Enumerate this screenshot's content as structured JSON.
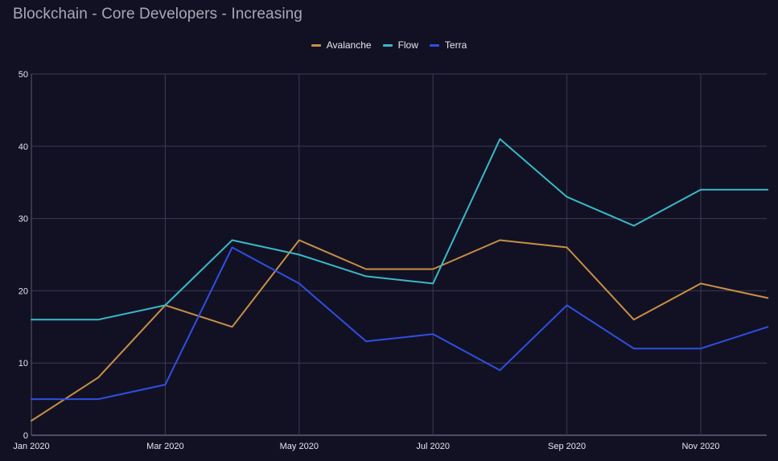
{
  "chart_data": {
    "type": "line",
    "title": "Blockchain - Core Developers - Increasing",
    "xlabel": "",
    "ylabel": "",
    "ylim": [
      0,
      50
    ],
    "yticks": [
      0,
      10,
      20,
      30,
      40,
      50
    ],
    "x": [
      "2020-01",
      "2020-02",
      "2020-03",
      "2020-04",
      "2020-05",
      "2020-06",
      "2020-07",
      "2020-08",
      "2020-09",
      "2020-10",
      "2020-11",
      "2020-12"
    ],
    "xticks": [
      {
        "label": "Jan 2020",
        "index": 0
      },
      {
        "label": "Mar 2020",
        "index": 2
      },
      {
        "label": "May 2020",
        "index": 4
      },
      {
        "label": "Jul 2020",
        "index": 6
      },
      {
        "label": "Sep 2020",
        "index": 8
      },
      {
        "label": "Nov 2020",
        "index": 10
      }
    ],
    "grid": true,
    "legend_position": "top-center",
    "series": [
      {
        "name": "Avalanche",
        "color": "#c88f45",
        "values": [
          2,
          8,
          18,
          15,
          27,
          23,
          23,
          27,
          26,
          16,
          21,
          19
        ]
      },
      {
        "name": "Flow",
        "color": "#3ab8c6",
        "values": [
          16,
          16,
          18,
          27,
          25,
          22,
          21,
          41,
          33,
          29,
          34,
          34
        ]
      },
      {
        "name": "Terra",
        "color": "#2f4fe0",
        "values": [
          5,
          5,
          7,
          26,
          21,
          13,
          14,
          9,
          18,
          12,
          12,
          15
        ]
      }
    ]
  }
}
